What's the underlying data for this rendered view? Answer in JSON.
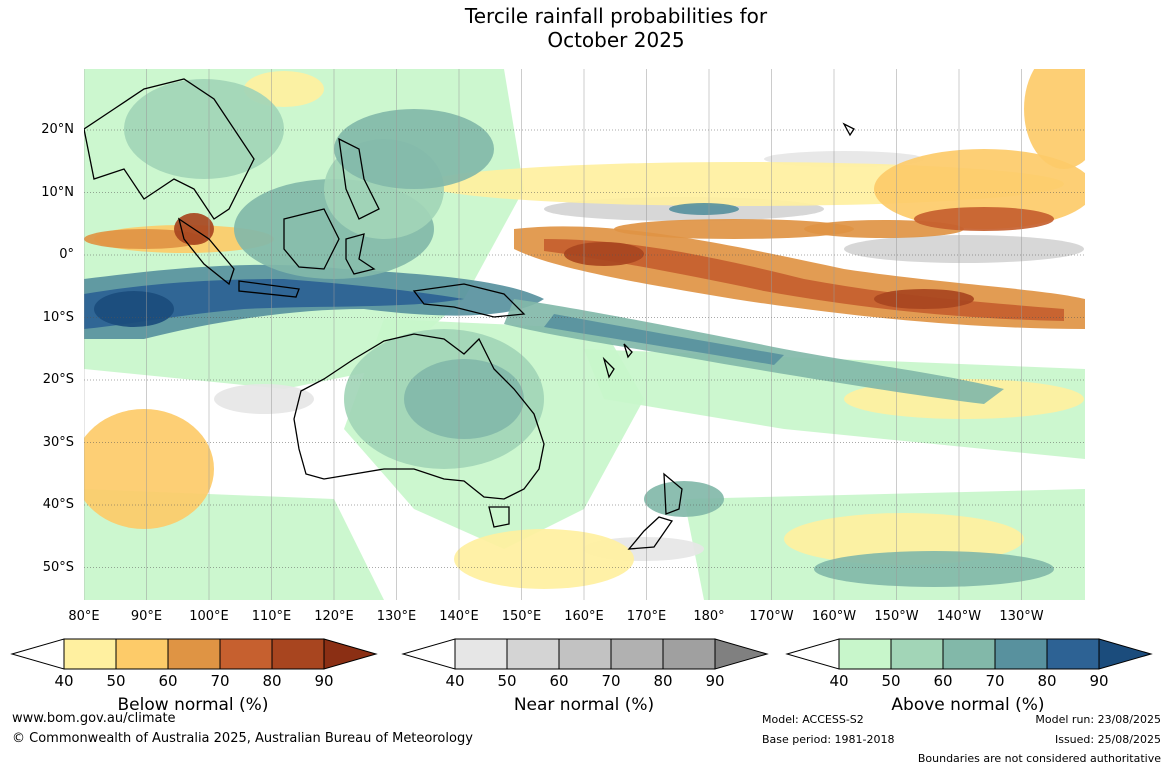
{
  "title_line1": "Tercile rainfall probabilities for",
  "title_line2": "October 2025",
  "latitude_labels": [
    "20°N",
    "10°N",
    "0°",
    "10°S",
    "20°S",
    "30°S",
    "40°S",
    "50°S"
  ],
  "longitude_labels": [
    "80°E",
    "90°E",
    "100°E",
    "110°E",
    "120°E",
    "130°E",
    "140°E",
    "150°E",
    "160°E",
    "170°E",
    "180°",
    "170°W",
    "160°W",
    "150°W",
    "140°W",
    "130°W"
  ],
  "colorbars": [
    {
      "title": "Below normal (%)",
      "ticks": [
        "40",
        "50",
        "60",
        "70",
        "80",
        "90"
      ],
      "colors": [
        "#fff0a0",
        "#fdcb69",
        "#df9444",
        "#c6602f",
        "#a8451f",
        "#8b2f14"
      ]
    },
    {
      "title": "Near normal (%)",
      "ticks": [
        "40",
        "50",
        "60",
        "70",
        "80",
        "90"
      ],
      "colors": [
        "#e6e6e6",
        "#d4d4d4",
        "#c2c2c2",
        "#b1b1b1",
        "#a0a0a0",
        "#808080"
      ]
    },
    {
      "title": "Above normal (%)",
      "ticks": [
        "40",
        "50",
        "60",
        "70",
        "80",
        "90"
      ],
      "colors": [
        "#c8f6cb",
        "#a2d5b7",
        "#82b8a9",
        "#58919e",
        "#2d6294",
        "#1b4c7c"
      ]
    }
  ],
  "footer": {
    "website": "www.bom.gov.au/climate",
    "copyright": "© Commonwealth of Australia 2025, Australian Bureau of Meteorology",
    "model": "Model: ACCESS-S2",
    "base_period": "Base period: 1981-2018",
    "model_run": "Model run: 23/08/2025",
    "issued": "Issued: 25/08/2025",
    "disclaimer": "Boundaries are not considered authoritative"
  }
}
